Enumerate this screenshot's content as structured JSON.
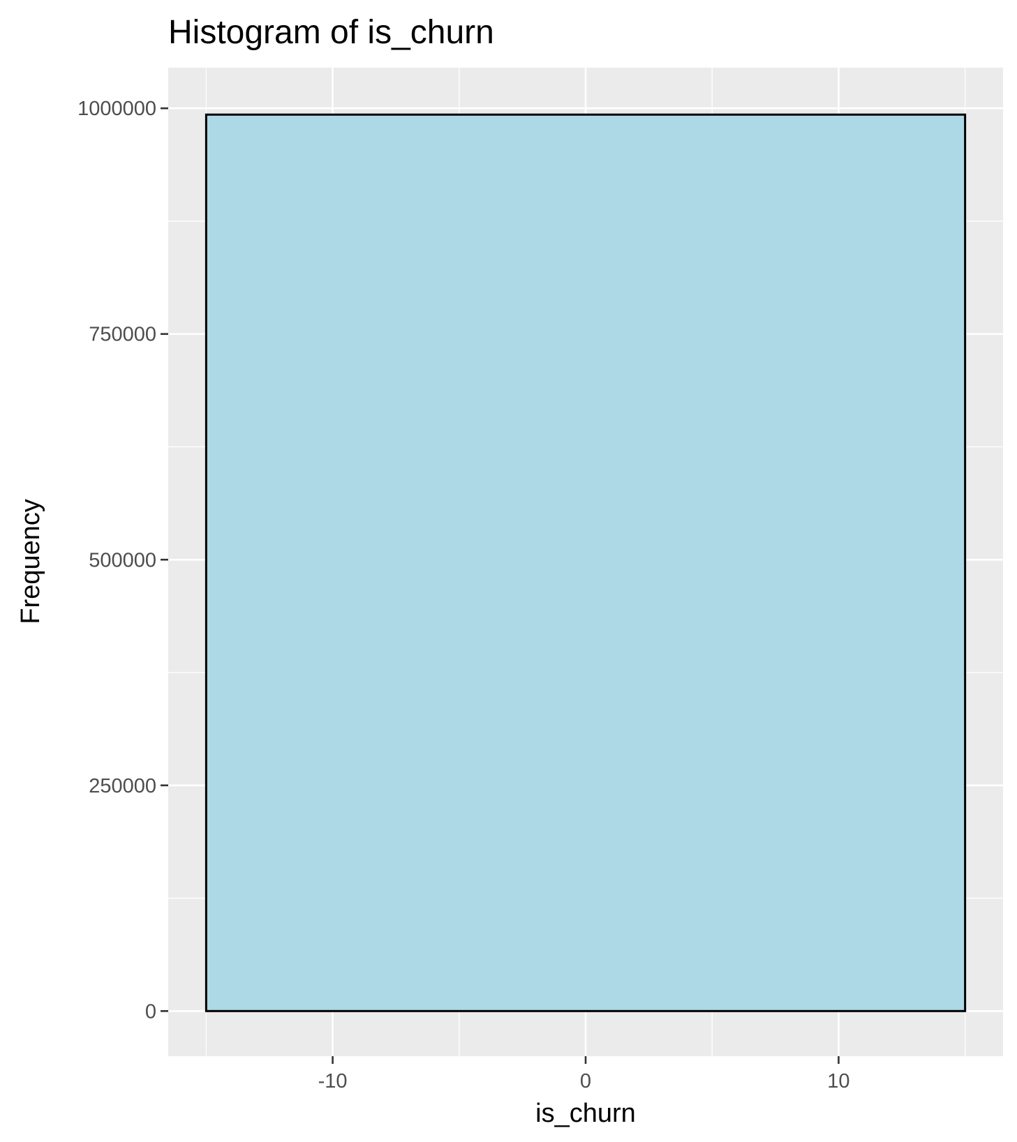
{
  "chart_data": {
    "type": "bar",
    "subtype": "histogram",
    "title": "Histogram of is_churn",
    "xlabel": "is_churn",
    "ylabel": "Frequency",
    "bins": [
      {
        "x_start": -15,
        "x_end": 15,
        "count": 993000
      }
    ],
    "xlim": [
      -16.5,
      16.5
    ],
    "ylim": [
      -50000,
      1045000
    ],
    "x_ticks": [
      -10,
      0,
      10
    ],
    "x_tick_labels": [
      "-10",
      "0",
      "10"
    ],
    "y_ticks": [
      0,
      250000,
      500000,
      750000,
      1000000
    ],
    "y_tick_labels": [
      "0",
      "250000",
      "500000",
      "750000",
      "1000000"
    ],
    "grid": true,
    "legend": "none",
    "colors": {
      "bar_fill": "#add8e6",
      "bar_stroke": "#000000",
      "panel_background": "#ebebeb",
      "grid_major": "#ffffff",
      "grid_minor": "#f5f5f5",
      "tick_text": "#4d4d4d"
    }
  }
}
